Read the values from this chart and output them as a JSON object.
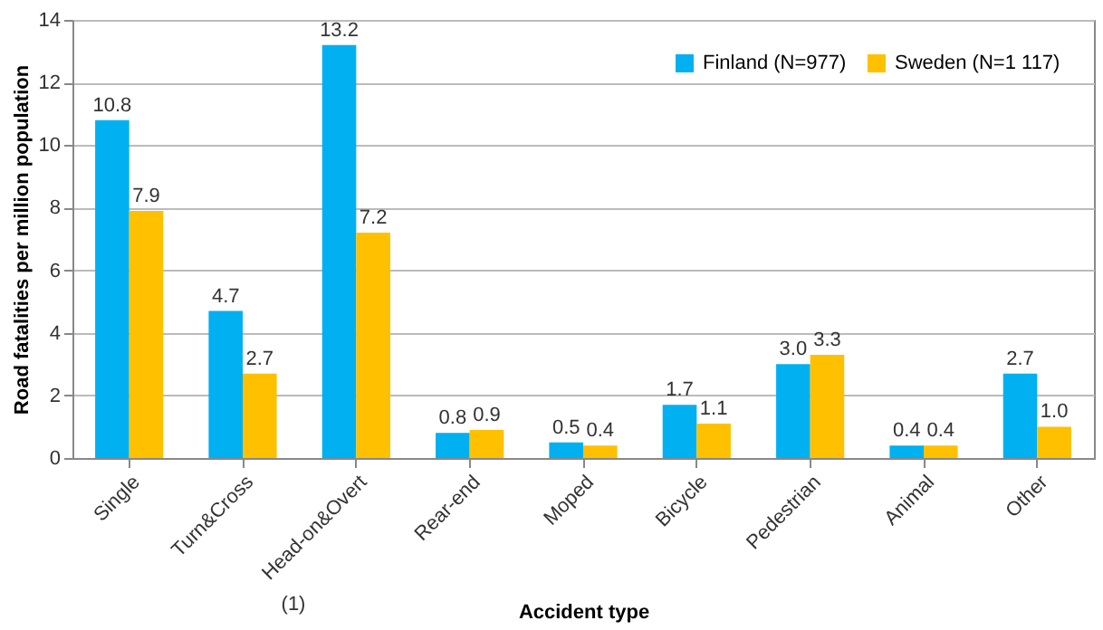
{
  "chart_data": {
    "type": "bar",
    "xlabel": "Accident type",
    "ylabel": "Road fatalities per million population",
    "categories": [
      "Single",
      "Turn&Cross",
      "Head-on&Overt",
      "Rear-end",
      "Moped",
      "Bicycle",
      "Pedestrian",
      "Animal",
      "Other"
    ],
    "series": [
      {
        "name": "Finland (N=977)",
        "color": "#00b0f0",
        "values": [
          10.8,
          4.7,
          13.2,
          0.8,
          0.5,
          1.7,
          3.0,
          0.4,
          2.7
        ],
        "value_labels": [
          "10.8",
          "4.7",
          "13.2",
          "0.8",
          "0.5",
          "1.7",
          "3.0",
          "0.4",
          "2.7"
        ]
      },
      {
        "name": "Sweden (N=1 117)",
        "color": "#ffc000",
        "values": [
          7.9,
          2.7,
          7.2,
          0.9,
          0.4,
          1.1,
          3.3,
          0.4,
          1.0
        ],
        "value_labels": [
          "7.9",
          "2.7",
          "7.2",
          "0.9",
          "0.4",
          "1.1",
          "3.3",
          "0.4",
          "1.0"
        ]
      }
    ],
    "ylim": [
      0,
      14
    ],
    "yticks": [
      0,
      2,
      4,
      6,
      8,
      10,
      12,
      14
    ],
    "grid": "y",
    "legend": "top right",
    "annotations": [
      "(1)"
    ]
  }
}
